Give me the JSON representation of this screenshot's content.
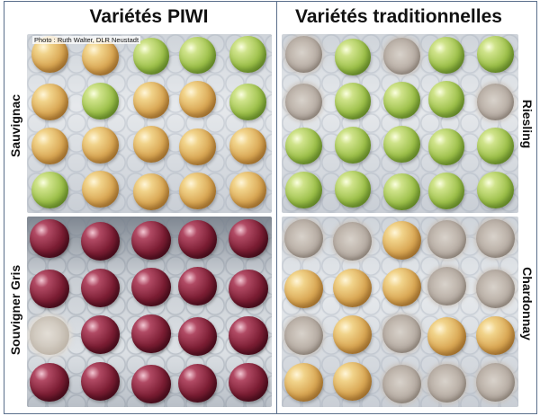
{
  "columns": {
    "left": "Variétés PIWI",
    "right": "Variétés traditionnelles"
  },
  "credit": "Photo : Ruth Walter, DLR Neustadt",
  "rows": {
    "top_left": "Sauvignac",
    "bottom_left": "Souvigner Gris",
    "top_right": "Riesling",
    "bottom_right": "Chardonnay"
  },
  "colors": {
    "border": "#5a6f8c",
    "heading_text": "#111111"
  },
  "panels": [
    {
      "id": "sauvignac",
      "tray": "light",
      "berries": [
        "amber",
        "amber",
        "green",
        "green",
        "green",
        "amber",
        "green",
        "amber",
        "amber",
        "green",
        "amber",
        "amber",
        "amber",
        "amber",
        "amber",
        "green",
        "amber",
        "amber",
        "amber",
        "amber"
      ]
    },
    {
      "id": "riesling",
      "tray": "light",
      "berries": [
        "mold",
        "green",
        "mold",
        "green",
        "green",
        "mold",
        "green",
        "green",
        "green",
        "mold",
        "green",
        "green",
        "green",
        "green",
        "green",
        "green",
        "green",
        "green",
        "green",
        "green"
      ]
    },
    {
      "id": "souvigner-gris",
      "tray": "dark",
      "berries": [
        "red",
        "red",
        "red",
        "red",
        "red",
        "red",
        "red",
        "red",
        "red",
        "red",
        "moldred",
        "red",
        "red",
        "red",
        "red",
        "red",
        "red",
        "red",
        "red",
        "red"
      ]
    },
    {
      "id": "chardonnay",
      "tray": "light",
      "berries": [
        "mold",
        "mold",
        "amber",
        "mold",
        "mold",
        "amber",
        "amber",
        "amber",
        "mold",
        "mold",
        "mold",
        "amber",
        "mold",
        "amber",
        "amber",
        "amber",
        "amber",
        "mold",
        "mold",
        "mold"
      ]
    }
  ]
}
